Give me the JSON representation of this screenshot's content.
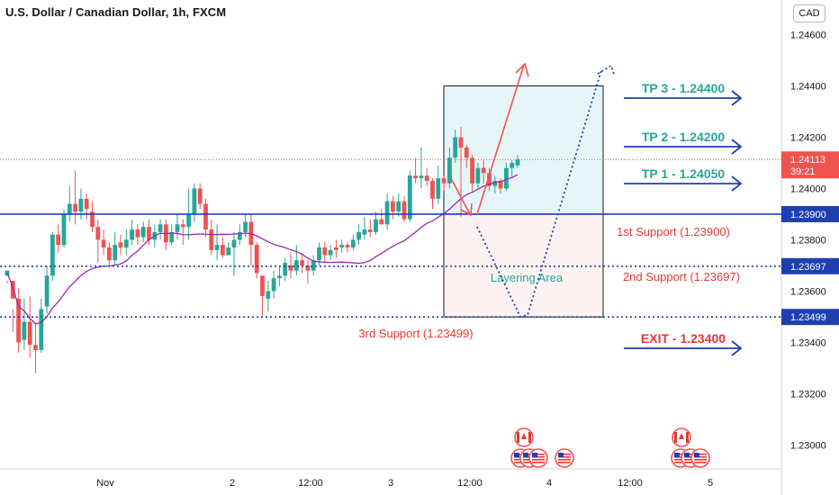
{
  "header": {
    "title": "U.S. Dollar / Canadian Dollar, 1h, FXCM",
    "currency": "CAD"
  },
  "chart_data": {
    "type": "candlestick",
    "ylim": [
      1.2291,
      1.247
    ],
    "y_ticks": [
      "1.24600",
      "1.24400",
      "1.24200",
      "1.24000",
      "1.23800",
      "1.23600",
      "1.23400",
      "1.23200",
      "1.23000"
    ],
    "x_ticks": [
      "Nov",
      "2",
      "12:00",
      "3",
      "12:00",
      "4",
      "12:00",
      "5"
    ],
    "current_price": {
      "value": 1.24113,
      "label": "1.24113",
      "countdown": "39:21"
    },
    "levels": [
      {
        "value": 1.239,
        "label": "1.23900",
        "style": "solid",
        "color": "#1e40af",
        "text": "1st Support (1.23900)"
      },
      {
        "value": 1.23697,
        "label": "1.23697",
        "style": "dotted",
        "color": "#1e40af",
        "text": "2nd Support (1.23697)"
      },
      {
        "value": 1.23499,
        "label": "1.23499",
        "style": "dotted",
        "color": "#1e40af",
        "text": "3rd Support (1.23499)"
      }
    ],
    "targets": [
      {
        "label": "TP 3 - 1.24400",
        "value": 1.244,
        "color": "#26a69a"
      },
      {
        "label": "TP 2 - 1.24200",
        "value": 1.242,
        "color": "#26a69a"
      },
      {
        "label": "TP 1 - 1.24050",
        "value": 1.2405,
        "color": "#26a69a"
      },
      {
        "label": "EXIT - 1.23400",
        "value": 1.234,
        "color": "#e53935"
      }
    ],
    "zones": {
      "profit": {
        "top": 1.244,
        "bottom": 1.239
      },
      "risk": {
        "top": 1.239,
        "bottom": 1.23499
      },
      "layering_label": "Layering Area"
    },
    "moving_average_color": "#9c27b0",
    "candles": [
      [
        1.2366,
        1.2368,
        1.2364,
        1.2363
      ],
      [
        1.2364,
        1.2357,
        1.2353,
        1.2344
      ],
      [
        1.2357,
        1.234,
        1.2361,
        1.2336
      ],
      [
        1.2341,
        1.2348,
        1.2357,
        1.2337
      ],
      [
        1.2348,
        1.2339,
        1.2358,
        1.2334
      ],
      [
        1.2339,
        1.2337,
        1.2347,
        1.2328
      ],
      [
        1.2337,
        1.2353,
        1.2357,
        1.2336
      ],
      [
        1.2354,
        1.2366,
        1.237,
        1.2351
      ],
      [
        1.2366,
        1.2382,
        1.2383,
        1.2364
      ],
      [
        1.2382,
        1.2378,
        1.2386,
        1.2375
      ],
      [
        1.2378,
        1.239,
        1.2392,
        1.2377
      ],
      [
        1.239,
        1.2394,
        1.2401,
        1.2387
      ],
      [
        1.2394,
        1.2391,
        1.2407,
        1.2386
      ],
      [
        1.2391,
        1.2396,
        1.24,
        1.2388
      ],
      [
        1.2396,
        1.2392,
        1.2398,
        1.2388
      ],
      [
        1.2391,
        1.2385,
        1.2395,
        1.2383
      ],
      [
        1.2385,
        1.238,
        1.2388,
        1.2371
      ],
      [
        1.238,
        1.2377,
        1.2384,
        1.2374
      ],
      [
        1.2377,
        1.2372,
        1.2379,
        1.237
      ],
      [
        1.2372,
        1.2378,
        1.2383,
        1.237
      ],
      [
        1.2379,
        1.2377,
        1.2382,
        1.2374
      ],
      [
        1.2377,
        1.238,
        1.2384,
        1.2374
      ],
      [
        1.238,
        1.2384,
        1.2388,
        1.2378
      ],
      [
        1.2384,
        1.2381,
        1.2386,
        1.2378
      ],
      [
        1.2381,
        1.2385,
        1.2387,
        1.2379
      ],
      [
        1.2385,
        1.238,
        1.2388,
        1.2378
      ],
      [
        1.238,
        1.2383,
        1.2386,
        1.2377
      ],
      [
        1.2383,
        1.2386,
        1.2388,
        1.238
      ],
      [
        1.2386,
        1.2379,
        1.2388,
        1.2376
      ],
      [
        1.2379,
        1.2383,
        1.2386,
        1.2378
      ],
      [
        1.2383,
        1.2386,
        1.239,
        1.238
      ],
      [
        1.2386,
        1.2385,
        1.2388,
        1.2378
      ],
      [
        1.2385,
        1.239,
        1.24,
        1.238
      ],
      [
        1.239,
        1.24,
        1.2402,
        1.2387
      ],
      [
        1.24,
        1.2394,
        1.2402,
        1.2392
      ],
      [
        1.2394,
        1.2384,
        1.2396,
        1.2381
      ],
      [
        1.2384,
        1.2376,
        1.2388,
        1.2374
      ],
      [
        1.2376,
        1.2378,
        1.2386,
        1.2372
      ],
      [
        1.2378,
        1.2374,
        1.2381,
        1.2373
      ],
      [
        1.2374,
        1.2377,
        1.2379,
        1.2375
      ],
      [
        1.2377,
        1.238,
        1.2383,
        1.2366
      ],
      [
        1.238,
        1.2383,
        1.2386,
        1.2378
      ],
      [
        1.2383,
        1.2387,
        1.239,
        1.2381
      ],
      [
        1.2387,
        1.2378,
        1.239,
        1.237
      ],
      [
        1.2378,
        1.2367,
        1.2379,
        1.2365
      ],
      [
        1.2366,
        1.2358,
        1.2366,
        1.235
      ],
      [
        1.2357,
        1.236,
        1.2364,
        1.2352
      ],
      [
        1.236,
        1.2365,
        1.2368,
        1.2357
      ],
      [
        1.2365,
        1.2366,
        1.237,
        1.2362
      ],
      [
        1.2366,
        1.2371,
        1.2373,
        1.2364
      ],
      [
        1.237,
        1.2368,
        1.2375,
        1.2365
      ],
      [
        1.2368,
        1.2372,
        1.2378,
        1.2366
      ],
      [
        1.2372,
        1.237,
        1.2375,
        1.2367
      ],
      [
        1.237,
        1.2368,
        1.2372,
        1.2363
      ],
      [
        1.2368,
        1.2372,
        1.2374,
        1.2366
      ],
      [
        1.2372,
        1.2377,
        1.2379,
        1.237
      ],
      [
        1.2377,
        1.2374,
        1.2379,
        1.2371
      ],
      [
        1.2374,
        1.2376,
        1.2378,
        1.2372
      ],
      [
        1.2377,
        1.2376,
        1.238,
        1.2373
      ],
      [
        1.2377,
        1.2378,
        1.238,
        1.2375
      ],
      [
        1.2378,
        1.2377,
        1.2379,
        1.2375
      ],
      [
        1.2377,
        1.238,
        1.2382,
        1.2376
      ],
      [
        1.238,
        1.2383,
        1.2386,
        1.2378
      ],
      [
        1.2382,
        1.2384,
        1.2389,
        1.238
      ],
      [
        1.2384,
        1.2383,
        1.2388,
        1.2381
      ],
      [
        1.2383,
        1.2388,
        1.2391,
        1.2382
      ],
      [
        1.2388,
        1.2386,
        1.2392,
        1.2386
      ],
      [
        1.2386,
        1.2395,
        1.2398,
        1.2384
      ],
      [
        1.2395,
        1.2391,
        1.2397,
        1.2388
      ],
      [
        1.2391,
        1.2395,
        1.2398,
        1.2389
      ],
      [
        1.2395,
        1.2388,
        1.2397,
        1.2387
      ],
      [
        1.2388,
        1.2405,
        1.2407,
        1.2387
      ],
      [
        1.2405,
        1.2404,
        1.2412,
        1.2402
      ],
      [
        1.2404,
        1.2405,
        1.2416,
        1.24
      ],
      [
        1.2405,
        1.2403,
        1.2408,
        1.2401
      ],
      [
        1.2403,
        1.2396,
        1.2404,
        1.2392
      ],
      [
        1.2396,
        1.2404,
        1.2409,
        1.2394
      ],
      [
        1.2404,
        1.2402,
        1.2405,
        1.2399
      ],
      [
        1.2402,
        1.2412,
        1.2416,
        1.24
      ],
      [
        1.2412,
        1.242,
        1.2423,
        1.241
      ],
      [
        1.242,
        1.2416,
        1.2424,
        1.2389
      ],
      [
        1.2416,
        1.2412,
        1.2417,
        1.2408
      ],
      [
        1.2412,
        1.2402,
        1.2413,
        1.2399
      ],
      [
        1.2402,
        1.2408,
        1.241,
        1.24
      ],
      [
        1.2408,
        1.2406,
        1.2411,
        1.2402
      ],
      [
        1.2406,
        1.2401,
        1.2408,
        1.2399
      ],
      [
        1.2401,
        1.2403,
        1.2405,
        1.2398
      ],
      [
        1.2403,
        1.24,
        1.2404,
        1.2398
      ],
      [
        1.24,
        1.2408,
        1.241,
        1.2399
      ],
      [
        1.2408,
        1.241,
        1.2411,
        1.2404
      ],
      [
        1.2409,
        1.24113,
        1.2413,
        1.2408
      ]
    ]
  }
}
